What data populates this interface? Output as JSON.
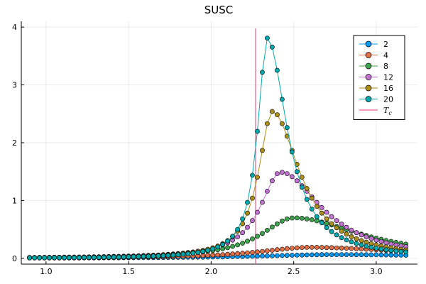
{
  "chart_data": {
    "type": "scatter",
    "title": "SUSC",
    "xlabel": "",
    "ylabel": "",
    "xlim": [
      0.85,
      3.25
    ],
    "ylim": [
      -0.1,
      4.1
    ],
    "x_ticks": [
      1.0,
      1.5,
      2.0,
      2.5,
      3.0
    ],
    "x_tick_labels": [
      "1.0",
      "1.5",
      "2.0",
      "2.5",
      "3.0"
    ],
    "y_ticks": [
      0,
      1,
      2,
      3,
      4
    ],
    "y_tick_labels": [
      "0",
      "1",
      "2",
      "3",
      "4"
    ],
    "grid": true,
    "legend_position": "top-right",
    "series": [
      {
        "name": "2",
        "color": "#009AFA",
        "peak_x": 2.75,
        "peak_y": 0.065,
        "width_left": 0.55,
        "width_right": 0.9
      },
      {
        "name": "4",
        "color": "#E36F47",
        "peak_x": 2.6,
        "peak_y": 0.19,
        "width_left": 0.38,
        "width_right": 0.75
      },
      {
        "name": "8",
        "color": "#3EA44E",
        "peak_x": 2.5,
        "peak_y": 0.7,
        "width_left": 0.24,
        "width_right": 0.5
      },
      {
        "name": "12",
        "color": "#C371D2",
        "peak_x": 2.42,
        "peak_y": 1.49,
        "width_left": 0.15,
        "width_right": 0.3
      },
      {
        "name": "16",
        "color": "#AC8E18",
        "peak_x": 2.37,
        "peak_y": 2.54,
        "width_left": 0.1,
        "width_right": 0.2
      },
      {
        "name": "20",
        "color": "#00A9AD",
        "peak_x": 2.34,
        "peak_y": 3.81,
        "width_left": 0.07,
        "width_right": 0.145
      }
    ],
    "x_points": {
      "start": 0.9,
      "end": 3.18,
      "count": 77
    },
    "vline": {
      "name": "T_c",
      "x": 2.269,
      "color": "#ED5D92"
    }
  }
}
